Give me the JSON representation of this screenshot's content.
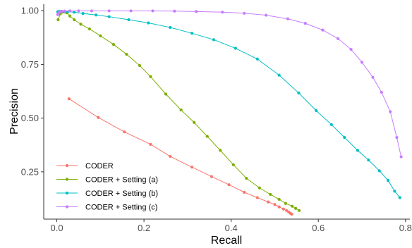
{
  "chart_data": {
    "type": "line",
    "title": "",
    "xlabel": "Recall",
    "ylabel": "Precision",
    "xlim": [
      -0.03,
      0.81
    ],
    "ylim": [
      0.03,
      1.03
    ],
    "x_ticks": [
      0.0,
      0.2,
      0.4,
      0.6,
      0.8
    ],
    "x_tick_labels": [
      "0.0",
      "0.2",
      "0.4",
      "0.6",
      "0.8"
    ],
    "y_ticks": [
      0.25,
      0.5,
      0.75,
      1.0
    ],
    "y_tick_labels": [
      "0.25",
      "0.50",
      "0.75",
      "1.00"
    ],
    "grid": false,
    "legend_position": "bottom-left",
    "series": [
      {
        "name": "CODER",
        "color": "#F8766D",
        "x": [
          0.028,
          0.095,
          0.155,
          0.215,
          0.26,
          0.31,
          0.355,
          0.395,
          0.43,
          0.46,
          0.485,
          0.5,
          0.51,
          0.52,
          0.527,
          0.532,
          0.536,
          0.539
        ],
        "y": [
          0.59,
          0.503,
          0.436,
          0.378,
          0.322,
          0.272,
          0.228,
          0.19,
          0.155,
          0.13,
          0.11,
          0.098,
          0.087,
          0.077,
          0.07,
          0.063,
          0.057,
          0.053
        ]
      },
      {
        "name": "CODER + Setting (a)",
        "color": "#7CAE00",
        "x": [
          0.003,
          0.008,
          0.013,
          0.018,
          0.023,
          0.03,
          0.04,
          0.055,
          0.075,
          0.1,
          0.13,
          0.16,
          0.19,
          0.215,
          0.25,
          0.285,
          0.315,
          0.345,
          0.375,
          0.405,
          0.435,
          0.465,
          0.49,
          0.51,
          0.525,
          0.54,
          0.548,
          0.556
        ],
        "y": [
          0.958,
          0.985,
          0.993,
          0.994,
          0.99,
          0.975,
          0.958,
          0.937,
          0.915,
          0.883,
          0.843,
          0.797,
          0.745,
          0.693,
          0.612,
          0.538,
          0.48,
          0.415,
          0.35,
          0.283,
          0.22,
          0.175,
          0.145,
          0.122,
          0.103,
          0.09,
          0.08,
          0.07
        ]
      },
      {
        "name": "CODER + Setting (b)",
        "color": "#00BFC4",
        "x": [
          0.002,
          0.006,
          0.01,
          0.016,
          0.025,
          0.04,
          0.06,
          0.09,
          0.12,
          0.165,
          0.21,
          0.26,
          0.31,
          0.36,
          0.41,
          0.46,
          0.51,
          0.555,
          0.595,
          0.63,
          0.66,
          0.69,
          0.715,
          0.74,
          0.76,
          0.775,
          0.787
        ],
        "y": [
          0.995,
          0.997,
          0.996,
          0.995,
          0.995,
          0.993,
          0.987,
          0.98,
          0.972,
          0.958,
          0.943,
          0.922,
          0.895,
          0.865,
          0.825,
          0.775,
          0.7,
          0.617,
          0.535,
          0.47,
          0.41,
          0.35,
          0.305,
          0.255,
          0.21,
          0.16,
          0.13
        ]
      },
      {
        "name": "CODER + Setting (c)",
        "color": "#C77CFF",
        "x": [
          0.002,
          0.005,
          0.008,
          0.012,
          0.018,
          0.03,
          0.05,
          0.08,
          0.12,
          0.17,
          0.22,
          0.27,
          0.32,
          0.38,
          0.43,
          0.48,
          0.53,
          0.57,
          0.61,
          0.645,
          0.675,
          0.7,
          0.725,
          0.745,
          0.765,
          0.78,
          0.79
        ],
        "y": [
          0.982,
          0.99,
          0.995,
          0.997,
          0.998,
          0.999,
          0.999,
          0.999,
          0.999,
          0.999,
          0.999,
          0.998,
          0.996,
          0.993,
          0.988,
          0.979,
          0.962,
          0.941,
          0.91,
          0.87,
          0.82,
          0.76,
          0.69,
          0.62,
          0.53,
          0.41,
          0.32
        ]
      }
    ]
  }
}
